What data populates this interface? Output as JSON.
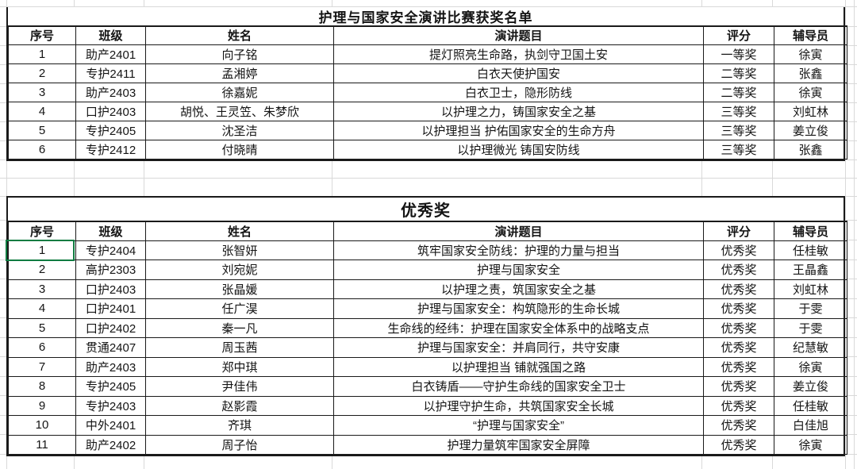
{
  "tables": {
    "table1": {
      "title": "护理与国家安全演讲比赛获奖名单",
      "headers": [
        "序号",
        "班级",
        "姓名",
        "演讲题目",
        "评分",
        "辅导员"
      ],
      "rows": [
        [
          "1",
          "助产2401",
          "向子铭",
          "提灯照亮生命路，执剑守卫国土安",
          "一等奖",
          "徐寅"
        ],
        [
          "2",
          "专护2411",
          "孟湘婷",
          "白衣天使护国安",
          "二等奖",
          "张鑫"
        ],
        [
          "3",
          "助产2403",
          "徐嘉妮",
          "白衣卫士，隐形防线",
          "二等奖",
          "徐寅"
        ],
        [
          "4",
          "口护2403",
          "胡悦、王灵笠、朱梦欣",
          "以护理之力，铸国家安全之基",
          "三等奖",
          "刘虹林"
        ],
        [
          "5",
          "专护2405",
          "沈圣洁",
          "以护理担当 护佑国家安全的生命方舟",
          "三等奖",
          "姜立俊"
        ],
        [
          "6",
          "专护2412",
          "付晓晴",
          "以护理微光 铸国安防线",
          "三等奖",
          "张鑫"
        ]
      ]
    },
    "table2": {
      "title": "优秀奖",
      "headers": [
        "序号",
        "班级",
        "姓名",
        "演讲题目",
        "评分",
        "辅导员"
      ],
      "rows": [
        [
          "1",
          "专护2404",
          "张智妍",
          "筑牢国家安全防线：护理的力量与担当",
          "优秀奖",
          "任桂敏"
        ],
        [
          "2",
          "高护2303",
          "刘宛妮",
          "护理与国家安全",
          "优秀奖",
          "王晶鑫"
        ],
        [
          "3",
          "口护2403",
          "张晶媛",
          "以护理之责，筑国家安全之基",
          "优秀奖",
          "刘虹林"
        ],
        [
          "4",
          "口护2401",
          "任广淏",
          "护理与国家安全：构筑隐形的生命长城",
          "优秀奖",
          "于雯"
        ],
        [
          "5",
          "口护2402",
          "秦一凡",
          "生命线的经纬：护理在国家安全体系中的战略支点",
          "优秀奖",
          "于雯"
        ],
        [
          "6",
          "贯通2407",
          "周玉茜",
          "护理与国家安全：并肩同行，共守安康",
          "优秀奖",
          "纪慧敏"
        ],
        [
          "7",
          "助产2403",
          "郑中琪",
          "以护理担当 铺就强国之路",
          "优秀奖",
          "徐寅"
        ],
        [
          "8",
          "专护2405",
          "尹佳伟",
          "白衣铸盾——守护生命线的国家安全卫士",
          "优秀奖",
          "姜立俊"
        ],
        [
          "9",
          "专护2403",
          "赵影霞",
          "以护理守护生命，共筑国家安全长城",
          "优秀奖",
          "任桂敏"
        ],
        [
          "10",
          "中外2401",
          "齐琪",
          "“护理与国家安全”",
          "优秀奖",
          "白佳旭"
        ],
        [
          "11",
          "助产2402",
          "周子怡",
          "护理力量筑牢国家安全屏障",
          "优秀奖",
          "徐寅"
        ]
      ]
    }
  },
  "selected_cell": {
    "table": "table2",
    "row_index": 0,
    "column": "序号",
    "value": "1"
  },
  "colors": {
    "selection_green": "#107C41",
    "grid_line": "#d9d9d9",
    "table_border": "#1a1a1a",
    "text": "#141414",
    "background": "#ffffff"
  }
}
